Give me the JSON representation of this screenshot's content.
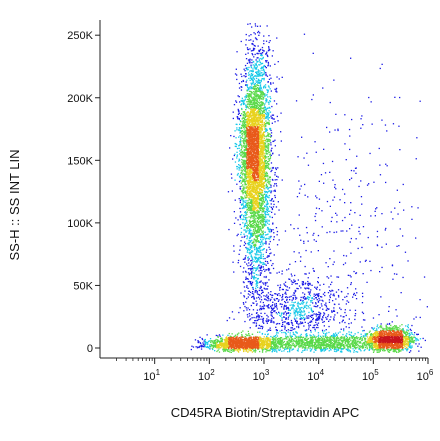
{
  "chart_data": {
    "type": "scatter",
    "xlabel": "CD45RA Biotin/Streptavidin APC",
    "ylabel": "SS-H :: SS INT LIN",
    "x_scale": "log",
    "y_scale": "linear",
    "xlim": [
      1,
      1000000
    ],
    "ylim": [
      -8000,
      262144
    ],
    "grid": false,
    "xticks": [
      {
        "value": 10,
        "base": "10",
        "exp": "1"
      },
      {
        "value": 100,
        "base": "10",
        "exp": "2"
      },
      {
        "value": 1000,
        "base": "10",
        "exp": "3"
      },
      {
        "value": 10000,
        "base": "10",
        "exp": "4"
      },
      {
        "value": 100000,
        "base": "10",
        "exp": "5"
      },
      {
        "value": 1000000,
        "base": "10",
        "exp": "6"
      }
    ],
    "yticks": [
      {
        "value": 0,
        "label": "0"
      },
      {
        "value": 50000,
        "label": "50K"
      },
      {
        "value": 100000,
        "label": "100K"
      },
      {
        "value": 150000,
        "label": "150K"
      },
      {
        "value": 200000,
        "label": "200K"
      },
      {
        "value": 250000,
        "label": "250K"
      }
    ],
    "density_colors": [
      "#1a1ae6",
      "#17c9e8",
      "#5ad94a",
      "#e8d21e",
      "#e85a1a",
      "#c8141e"
    ],
    "populations": [
      {
        "x_log_center": 2.85,
        "x_log_sd": 0.14,
        "y_center": 145000,
        "y_sd": 48000,
        "y_min": 15000,
        "y_max": 260000,
        "count": 3600
      },
      {
        "x_log_center": 2.75,
        "x_log_sd": 0.12,
        "y_center": 165000,
        "y_sd": 22000,
        "y_min": 100000,
        "y_max": 230000,
        "count": 900
      },
      {
        "x_log_center": 2.6,
        "x_log_sd": 0.35,
        "y_center": 4000,
        "y_sd": 3000,
        "y_min": -3000,
        "y_max": 16000,
        "count": 1400
      },
      {
        "x_log_center": 4.1,
        "x_log_sd": 0.55,
        "y_center": 4500,
        "y_sd": 3500,
        "y_min": -3000,
        "y_max": 18000,
        "count": 1100
      },
      {
        "x_log_center": 5.3,
        "x_log_sd": 0.22,
        "y_center": 7000,
        "y_sd": 5000,
        "y_min": -3000,
        "y_max": 30000,
        "count": 1300
      },
      {
        "x_log_center": 3.6,
        "x_log_sd": 0.45,
        "y_center": 30000,
        "y_sd": 14000,
        "y_min": 12000,
        "y_max": 70000,
        "count": 700
      },
      {
        "x_log_center": 4.4,
        "x_log_sd": 0.7,
        "y_center": 90000,
        "y_sd": 60000,
        "y_min": 20000,
        "y_max": 255000,
        "count": 320
      }
    ]
  }
}
